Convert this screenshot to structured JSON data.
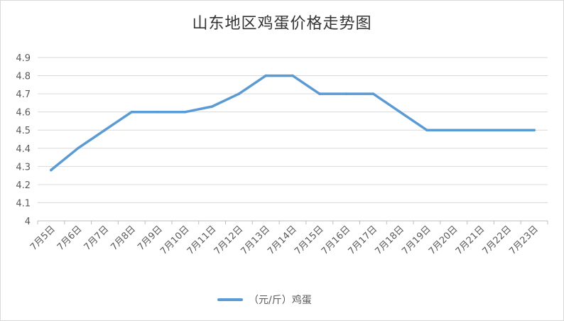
{
  "chart_data": {
    "type": "line",
    "title": "山东地区鸡蛋价格走势图",
    "categories": [
      "7月5日",
      "7月6日",
      "7月7日",
      "7月8日",
      "7月9日",
      "7月10日",
      "7月11日",
      "7月12日",
      "7月13日",
      "7月14日",
      "7月15日",
      "7月16日",
      "7月17日",
      "7月18日",
      "7月19日",
      "7月20日",
      "7月21日",
      "7月22日",
      "7月23日"
    ],
    "series": [
      {
        "name": "（元/斤）鸡蛋",
        "color": "#5b9bd5",
        "values": [
          4.28,
          4.4,
          4.5,
          4.6,
          4.6,
          4.6,
          4.63,
          4.7,
          4.8,
          4.8,
          4.7,
          4.7,
          4.7,
          4.6,
          4.5,
          4.5,
          4.5,
          4.5,
          4.5
        ]
      }
    ],
    "ylim": [
      4.0,
      4.9
    ],
    "yticks": [
      "4",
      "4.1",
      "4.2",
      "4.3",
      "4.4",
      "4.5",
      "4.6",
      "4.7",
      "4.8",
      "4.9"
    ],
    "grid": true,
    "legend_position": "bottom"
  }
}
